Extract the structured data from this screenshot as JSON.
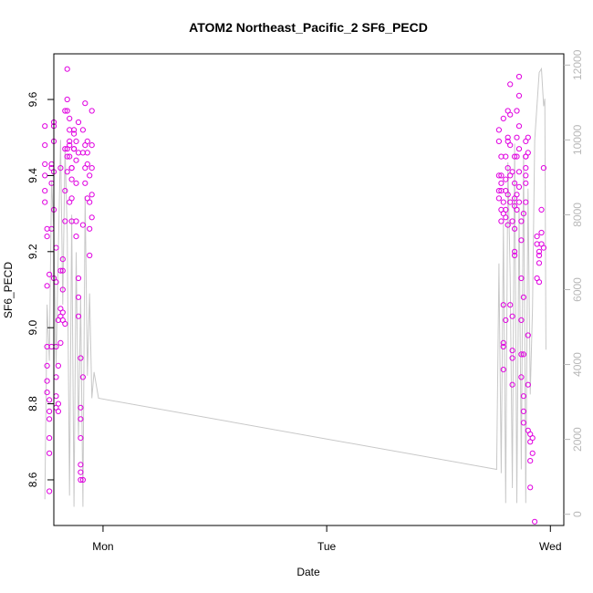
{
  "chart_data": {
    "type": "scatter",
    "title": "ATOM2 Northeast_Pacific_2 SF6_PECD",
    "xlabel": "Date",
    "ylabel": "SF6_PECD",
    "x_ticks": [
      "Mon",
      "Tue",
      "Wed"
    ],
    "x_range": [
      -0.22,
      2.06
    ],
    "y_ticks": [
      "8.6",
      "8.8",
      "9.0",
      "9.2",
      "9.4",
      "9.6"
    ],
    "ylim": [
      8.48,
      9.72
    ],
    "y2_ticks": [
      "0",
      "2000",
      "4000",
      "6000",
      "8000",
      "10000",
      "12000"
    ],
    "y2lim": [
      -300,
      12300
    ],
    "series": [
      {
        "marker": "open-circle",
        "color": "#e000e0",
        "x_unit": "days since Monday 00:00",
        "points": [
          [
            -0.26,
            9.53
          ],
          [
            -0.26,
            9.48
          ],
          [
            -0.26,
            9.43
          ],
          [
            -0.26,
            9.4
          ],
          [
            -0.26,
            9.36
          ],
          [
            -0.26,
            9.33
          ],
          [
            -0.25,
            9.26
          ],
          [
            -0.25,
            9.24
          ],
          [
            -0.25,
            9.11
          ],
          [
            -0.25,
            8.95
          ],
          [
            -0.25,
            8.9
          ],
          [
            -0.25,
            8.86
          ],
          [
            -0.25,
            8.83
          ],
          [
            -0.24,
            8.81
          ],
          [
            -0.24,
            8.78
          ],
          [
            -0.24,
            8.76
          ],
          [
            -0.24,
            8.71
          ],
          [
            -0.24,
            8.67
          ],
          [
            -0.24,
            8.57
          ],
          [
            -0.24,
            9.14
          ],
          [
            -0.23,
            9.26
          ],
          [
            -0.23,
            9.38
          ],
          [
            -0.23,
            9.42
          ],
          [
            -0.23,
            9.43
          ],
          [
            -0.23,
            8.95
          ],
          [
            -0.22,
            9.13
          ],
          [
            -0.22,
            9.31
          ],
          [
            -0.22,
            9.53
          ],
          [
            -0.22,
            9.54
          ],
          [
            -0.22,
            9.49
          ],
          [
            -0.22,
            9.41
          ],
          [
            -0.21,
            9.21
          ],
          [
            -0.21,
            9.12
          ],
          [
            -0.21,
            8.95
          ],
          [
            -0.21,
            8.87
          ],
          [
            -0.21,
            8.82
          ],
          [
            -0.21,
            8.79
          ],
          [
            -0.2,
            8.78
          ],
          [
            -0.2,
            8.8
          ],
          [
            -0.2,
            8.9
          ],
          [
            -0.2,
            9.02
          ],
          [
            -0.19,
            9.05
          ],
          [
            -0.19,
            9.15
          ],
          [
            -0.19,
            9.42
          ],
          [
            -0.19,
            9.03
          ],
          [
            -0.19,
            8.96
          ],
          [
            -0.18,
            9.02
          ],
          [
            -0.18,
            9.1
          ],
          [
            -0.18,
            9.18
          ],
          [
            -0.18,
            9.15
          ],
          [
            -0.18,
            9.04
          ],
          [
            -0.17,
            9.01
          ],
          [
            -0.17,
            9.28
          ],
          [
            -0.17,
            9.36
          ],
          [
            -0.17,
            9.47
          ],
          [
            -0.17,
            9.57
          ],
          [
            -0.16,
            9.68
          ],
          [
            -0.16,
            9.6
          ],
          [
            -0.16,
            9.57
          ],
          [
            -0.16,
            9.47
          ],
          [
            -0.16,
            9.45
          ],
          [
            -0.16,
            9.41
          ],
          [
            -0.15,
            9.33
          ],
          [
            -0.15,
            9.49
          ],
          [
            -0.15,
            9.55
          ],
          [
            -0.15,
            9.52
          ],
          [
            -0.15,
            9.48
          ],
          [
            -0.15,
            9.45
          ],
          [
            -0.14,
            9.42
          ],
          [
            -0.14,
            9.39
          ],
          [
            -0.14,
            9.34
          ],
          [
            -0.14,
            9.28
          ],
          [
            -0.14,
            9.42
          ],
          [
            -0.13,
            9.47
          ],
          [
            -0.13,
            9.52
          ],
          [
            -0.13,
            9.51
          ],
          [
            -0.13,
            9.47
          ],
          [
            -0.12,
            9.44
          ],
          [
            -0.12,
            9.28
          ],
          [
            -0.12,
            9.24
          ],
          [
            -0.12,
            9.38
          ],
          [
            -0.12,
            9.49
          ],
          [
            -0.11,
            9.54
          ],
          [
            -0.11,
            9.46
          ],
          [
            -0.11,
            9.13
          ],
          [
            -0.11,
            9.08
          ],
          [
            -0.11,
            9.03
          ],
          [
            -0.1,
            8.92
          ],
          [
            -0.1,
            8.76
          ],
          [
            -0.1,
            8.79
          ],
          [
            -0.1,
            8.71
          ],
          [
            -0.1,
            8.64
          ],
          [
            -0.1,
            8.62
          ],
          [
            -0.1,
            8.6
          ],
          [
            -0.09,
            8.6
          ],
          [
            -0.09,
            8.87
          ],
          [
            -0.09,
            9.27
          ],
          [
            -0.09,
            9.46
          ],
          [
            -0.09,
            9.52
          ],
          [
            -0.08,
            9.59
          ],
          [
            -0.08,
            9.48
          ],
          [
            -0.08,
            9.42
          ],
          [
            -0.08,
            9.38
          ],
          [
            -0.07,
            9.46
          ],
          [
            -0.07,
            9.49
          ],
          [
            -0.07,
            9.43
          ],
          [
            -0.07,
            9.34
          ],
          [
            -0.06,
            9.26
          ],
          [
            -0.06,
            9.19
          ],
          [
            -0.06,
            9.33
          ],
          [
            -0.06,
            9.4
          ],
          [
            -0.05,
            9.48
          ],
          [
            -0.05,
            9.57
          ],
          [
            -0.05,
            9.42
          ],
          [
            -0.05,
            9.35
          ],
          [
            -0.05,
            9.29
          ],
          [
            1.77,
            9.52
          ],
          [
            1.77,
            9.49
          ],
          [
            1.77,
            9.4
          ],
          [
            1.77,
            9.36
          ],
          [
            1.77,
            9.34
          ],
          [
            1.78,
            9.31
          ],
          [
            1.78,
            9.28
          ],
          [
            1.78,
            9.36
          ],
          [
            1.78,
            9.38
          ],
          [
            1.78,
            9.4
          ],
          [
            1.78,
            9.45
          ],
          [
            1.79,
            9.55
          ],
          [
            1.79,
            9.33
          ],
          [
            1.79,
            9.3
          ],
          [
            1.79,
            9.06
          ],
          [
            1.79,
            8.96
          ],
          [
            1.79,
            8.95
          ],
          [
            1.79,
            8.89
          ],
          [
            1.8,
            9.02
          ],
          [
            1.8,
            9.29
          ],
          [
            1.8,
            9.31
          ],
          [
            1.8,
            9.36
          ],
          [
            1.8,
            9.39
          ],
          [
            1.8,
            9.45
          ],
          [
            1.81,
            9.5
          ],
          [
            1.81,
            9.57
          ],
          [
            1.81,
            9.49
          ],
          [
            1.81,
            9.42
          ],
          [
            1.81,
            9.35
          ],
          [
            1.81,
            9.27
          ],
          [
            1.82,
            9.64
          ],
          [
            1.82,
            9.56
          ],
          [
            1.82,
            9.48
          ],
          [
            1.82,
            9.4
          ],
          [
            1.82,
            9.33
          ],
          [
            1.82,
            9.06
          ],
          [
            1.83,
            9.03
          ],
          [
            1.83,
            8.94
          ],
          [
            1.83,
            8.92
          ],
          [
            1.83,
            8.85
          ],
          [
            1.83,
            9.28
          ],
          [
            1.83,
            9.41
          ],
          [
            1.84,
            9.45
          ],
          [
            1.84,
            9.38
          ],
          [
            1.84,
            9.34
          ],
          [
            1.84,
            9.32
          ],
          [
            1.84,
            9.2
          ],
          [
            1.84,
            9.19
          ],
          [
            1.84,
            9.26
          ],
          [
            1.85,
            9.31
          ],
          [
            1.85,
            9.35
          ],
          [
            1.85,
            9.45
          ],
          [
            1.85,
            9.5
          ],
          [
            1.85,
            9.57
          ],
          [
            1.86,
            9.66
          ],
          [
            1.86,
            9.61
          ],
          [
            1.86,
            9.53
          ],
          [
            1.86,
            9.47
          ],
          [
            1.86,
            9.41
          ],
          [
            1.86,
            9.37
          ],
          [
            1.86,
            9.33
          ],
          [
            1.87,
            9.28
          ],
          [
            1.87,
            9.23
          ],
          [
            1.87,
            9.13
          ],
          [
            1.87,
            9.02
          ],
          [
            1.87,
            8.93
          ],
          [
            1.87,
            8.87
          ],
          [
            1.88,
            8.78
          ],
          [
            1.88,
            8.75
          ],
          [
            1.88,
            8.82
          ],
          [
            1.88,
            8.93
          ],
          [
            1.88,
            9.08
          ],
          [
            1.88,
            9.3
          ],
          [
            1.89,
            9.4
          ],
          [
            1.89,
            9.45
          ],
          [
            1.89,
            9.49
          ],
          [
            1.89,
            9.45
          ],
          [
            1.89,
            9.42
          ],
          [
            1.89,
            9.38
          ],
          [
            1.89,
            9.33
          ],
          [
            1.9,
            9.5
          ],
          [
            1.9,
            9.46
          ],
          [
            1.9,
            8.98
          ],
          [
            1.9,
            8.85
          ],
          [
            1.9,
            8.73
          ],
          [
            1.91,
            8.72
          ],
          [
            1.91,
            8.7
          ],
          [
            1.91,
            8.65
          ],
          [
            1.91,
            8.58
          ],
          [
            1.92,
            8.71
          ],
          [
            1.92,
            8.67
          ],
          [
            1.93,
            8.49
          ],
          [
            1.94,
            9.13
          ],
          [
            1.94,
            9.24
          ],
          [
            1.94,
            9.22
          ],
          [
            1.95,
            9.2
          ],
          [
            1.95,
            9.19
          ],
          [
            1.95,
            9.17
          ],
          [
            1.95,
            9.12
          ],
          [
            1.96,
            9.25
          ],
          [
            1.96,
            9.31
          ],
          [
            1.96,
            9.22
          ],
          [
            1.97,
            9.21
          ],
          [
            1.97,
            9.42
          ]
        ]
      },
      {
        "color": "#c8c8c8",
        "axis": "right",
        "x_unit": "days since Monday 00:00",
        "points": [
          [
            -0.26,
            400
          ],
          [
            -0.25,
            5600
          ],
          [
            -0.24,
            4100
          ],
          [
            -0.23,
            8900
          ],
          [
            -0.22,
            7600
          ],
          [
            -0.21,
            4000
          ],
          [
            -0.2,
            7000
          ],
          [
            -0.19,
            10000
          ],
          [
            -0.18,
            5600
          ],
          [
            -0.17,
            9800
          ],
          [
            -0.16,
            7500
          ],
          [
            -0.15,
            500
          ],
          [
            -0.14,
            8000
          ],
          [
            -0.13,
            200
          ],
          [
            -0.12,
            7000
          ],
          [
            -0.11,
            2000
          ],
          [
            -0.1,
            5800
          ],
          [
            -0.09,
            200
          ],
          [
            -0.08,
            8500
          ],
          [
            -0.07,
            3700
          ],
          [
            -0.06,
            5900
          ],
          [
            -0.05,
            3100
          ],
          [
            -0.04,
            3800
          ],
          [
            -0.02,
            3100
          ],
          [
            1.76,
            1200
          ],
          [
            1.77,
            6700
          ],
          [
            1.78,
            1100
          ],
          [
            1.79,
            7800
          ],
          [
            1.8,
            300
          ],
          [
            1.81,
            9400
          ],
          [
            1.82,
            6400
          ],
          [
            1.83,
            700
          ],
          [
            1.84,
            9900
          ],
          [
            1.85,
            300
          ],
          [
            1.86,
            8200
          ],
          [
            1.87,
            1200
          ],
          [
            1.88,
            9600
          ],
          [
            1.89,
            300
          ],
          [
            1.9,
            8700
          ],
          [
            1.91,
            3200
          ],
          [
            1.92,
            5500
          ],
          [
            1.93,
            10000
          ],
          [
            1.95,
            11800
          ],
          [
            1.96,
            11900
          ],
          [
            1.97,
            10900
          ],
          [
            1.975,
            11100
          ],
          [
            1.98,
            4400
          ]
        ]
      }
    ]
  }
}
